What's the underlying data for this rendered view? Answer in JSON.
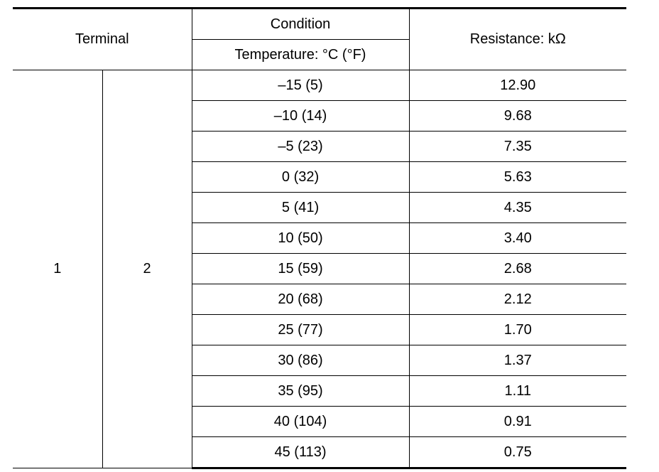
{
  "table": {
    "headers": {
      "terminal": "Terminal",
      "condition": "Condition",
      "temperature": "Temperature: °C (°F)",
      "resistance": "Resistance: kΩ"
    },
    "terminals": [
      "1",
      "2"
    ],
    "rows": [
      {
        "temperature": "–15 (5)",
        "resistance": "12.90"
      },
      {
        "temperature": "–10 (14)",
        "resistance": "9.68"
      },
      {
        "temperature": "–5 (23)",
        "resistance": "7.35"
      },
      {
        "temperature": "0 (32)",
        "resistance": "5.63"
      },
      {
        "temperature": "5 (41)",
        "resistance": "4.35"
      },
      {
        "temperature": "10 (50)",
        "resistance": "3.40"
      },
      {
        "temperature": "15 (59)",
        "resistance": "2.68"
      },
      {
        "temperature": "20 (68)",
        "resistance": "2.12"
      },
      {
        "temperature": "25 (77)",
        "resistance": "1.70"
      },
      {
        "temperature": "30 (86)",
        "resistance": "1.37"
      },
      {
        "temperature": "35 (95)",
        "resistance": "1.11"
      },
      {
        "temperature": "40 (104)",
        "resistance": "0.91"
      },
      {
        "temperature": "45 (113)",
        "resistance": "0.75"
      }
    ]
  }
}
